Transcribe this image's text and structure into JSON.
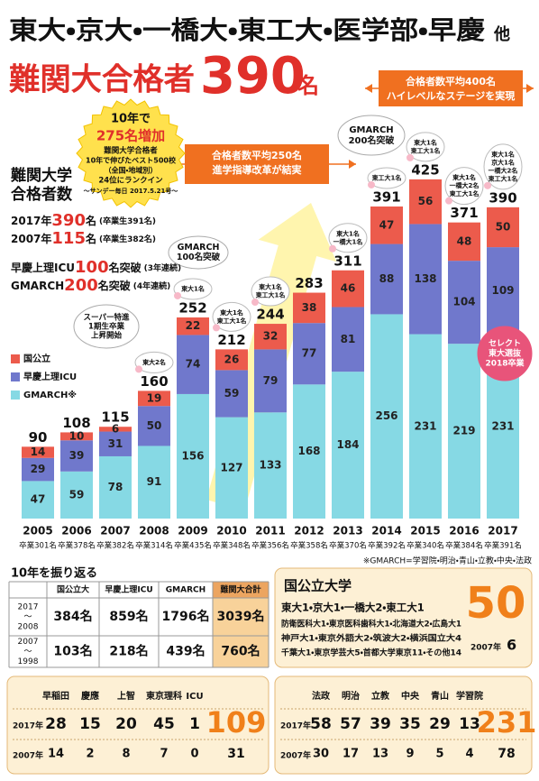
{
  "header": {
    "title": "東大・京大・一橋大・東工大・医学部・早慶",
    "title_suffix": "他",
    "subtitle": "難関大合格者",
    "subtitle_number": "390",
    "subtitle_unit": "名"
  },
  "badge": {
    "lines": [
      "10年で",
      "275名増加",
      "難関大学合格者",
      "10年で伸びたベスト500校",
      "（全国・地域別）",
      "24位にランクイン",
      "～サンデー毎日 2017.5.21号～"
    ]
  },
  "summary": {
    "heading": [
      "難関大学",
      "合格者数"
    ],
    "rows": [
      [
        "2017年",
        "390",
        "名",
        "(卒業生391名)"
      ],
      [
        "2007年",
        "115",
        "名",
        "(卒業生382名)"
      ],
      [
        "早慶上理ICU",
        "100",
        "名突破",
        "(3年連続)"
      ],
      [
        "GMARCH",
        "200",
        "名突破",
        "(4年連続)"
      ]
    ]
  },
  "chart_data": {
    "type": "bar",
    "stacked": true,
    "categories": [
      "2005",
      "2006",
      "2007",
      "2008",
      "2009",
      "2010",
      "2011",
      "2012",
      "2013",
      "2014",
      "2015",
      "2016",
      "2017"
    ],
    "series": [
      {
        "name": "GMARCH※",
        "color": "#86d9e4",
        "values": [
          47,
          59,
          78,
          91,
          156,
          127,
          133,
          168,
          184,
          256,
          231,
          219,
          231
        ]
      },
      {
        "name": "早慶上理ICU",
        "color": "#7078cc",
        "values": [
          29,
          39,
          31,
          50,
          74,
          59,
          79,
          77,
          81,
          88,
          138,
          104,
          109
        ]
      },
      {
        "name": "国公立",
        "color": "#ec5b4c",
        "values": [
          14,
          10,
          6,
          19,
          22,
          26,
          32,
          38,
          46,
          47,
          56,
          48,
          50
        ]
      }
    ],
    "totals": [
      90,
      108,
      115,
      160,
      252,
      212,
      244,
      283,
      311,
      391,
      425,
      371,
      390
    ],
    "graduates": [
      "卒業301名",
      "卒業378名",
      "卒業382名",
      "卒業314名",
      "卒業435名",
      "卒業348名",
      "卒業356名",
      "卒業358名",
      "卒業370名",
      "卒業392名",
      "卒業340名",
      "卒業384名",
      "卒業391名"
    ],
    "bar_notes": [
      null,
      null,
      null,
      [
        "東大2名"
      ],
      [
        "東大1名"
      ],
      [
        "東大1名",
        "東工大1名"
      ],
      [
        "東大1名",
        "東工大1名"
      ],
      null,
      [
        "東大1名",
        "一橋大1名"
      ],
      [
        "東工大1名"
      ],
      [
        "東大1名",
        "東工大1名"
      ],
      [
        "東大1名",
        "一橋大2名",
        "東工大1名"
      ],
      [
        "東大1名",
        "京大1名",
        "一橋大2名",
        "東工大1名"
      ]
    ],
    "callouts": [
      {
        "lines": [
          "スーパー特進",
          "1期生卒業",
          "上昇開始"
        ]
      },
      {
        "lines": [
          "GMARCH",
          "100名突破"
        ]
      },
      {
        "lines": [
          "GMARCH",
          "200名突破"
        ]
      },
      {
        "lines": [
          "合格者数平均250名",
          "進学指導改革が結実"
        ]
      },
      {
        "lines": [
          "合格者数平均400名",
          "ハイレベルなステージを実現"
        ]
      },
      {
        "lines": [
          "セレクト",
          "東大選抜",
          "2018卒業"
        ]
      }
    ],
    "footnote": "※GMARCH=学習院・明治・青山・立教・中央・法政"
  },
  "review": {
    "title": "10年を振り返る",
    "columns": [
      "国公立大",
      "早慶上理ICU",
      "GMARCH",
      "難関大合計"
    ],
    "rows": [
      {
        "period": [
          "2017",
          "～",
          "2008"
        ],
        "cells": [
          "384名",
          "859名",
          "1796名",
          "3039名"
        ]
      },
      {
        "period": [
          "2007",
          "～",
          "1998"
        ],
        "cells": [
          "103名",
          "218名",
          "439名",
          "760名"
        ]
      }
    ]
  },
  "national": {
    "title": "国公立大学",
    "lines": [
      "東大1・京大1・一橋大2・東工大1",
      "防衛医科大1・東京医科歯科大1・北海道大2・広島大1",
      "神戸大1・東京外語大2・筑波大2・横浜国立大4",
      "千葉大1・東京学芸大5・首都大学東京11・その他14"
    ],
    "total": "50",
    "past_label": "2007年",
    "past_value": "6"
  },
  "private": [
    {
      "columns": [
        "早稲田",
        "慶應",
        "上智",
        "東京理科",
        "ICU"
      ],
      "rows": [
        {
          "label": "2017年",
          "values": [
            28,
            15,
            20,
            45,
            1
          ],
          "total": 109
        },
        {
          "label": "2007年",
          "values": [
            14,
            2,
            8,
            7,
            0
          ],
          "total": 31
        }
      ]
    },
    {
      "columns": [
        "法政",
        "明治",
        "立教",
        "中央",
        "青山",
        "学習院"
      ],
      "rows": [
        {
          "label": "2017年",
          "values": [
            58,
            57,
            39,
            35,
            29,
            13
          ],
          "total": 231
        },
        {
          "label": "2007年",
          "values": [
            30,
            17,
            13,
            9,
            5,
            4
          ],
          "total": 78
        }
      ]
    }
  ]
}
